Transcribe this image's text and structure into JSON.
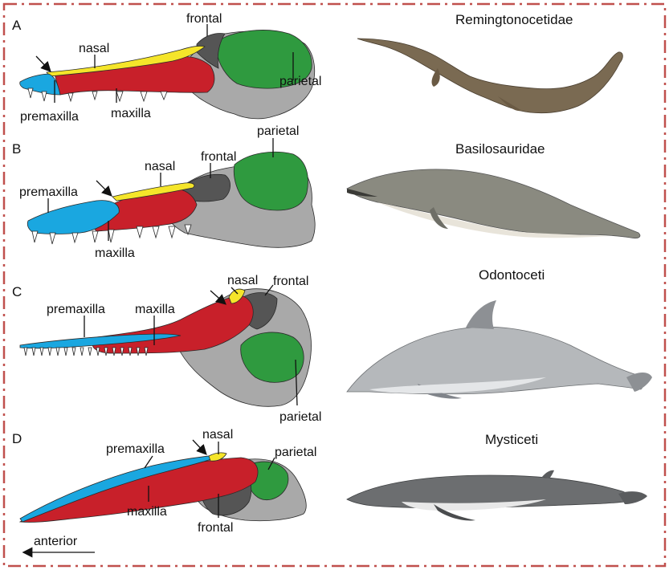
{
  "colors": {
    "premaxilla": "#1aa7e0",
    "maxilla": "#c8202a",
    "nasal": "#f5e52a",
    "frontal": "#555555",
    "parietal": "#2f9a3f",
    "skull_grey": "#a9a9a9",
    "frame": "#c0504d"
  },
  "panels": [
    {
      "letter": "A",
      "taxon": "Remingtonocetidae",
      "labels": {
        "frontal": "frontal",
        "nasal": "nasal",
        "parietal": "parietal",
        "premaxilla": "premaxilla",
        "maxilla": "maxilla"
      }
    },
    {
      "letter": "B",
      "taxon": "Basilosauridae",
      "labels": {
        "parietal": "parietal",
        "frontal": "frontal",
        "nasal": "nasal",
        "premaxilla": "premaxilla",
        "maxilla": "maxilla"
      }
    },
    {
      "letter": "C",
      "taxon": "Odontoceti",
      "labels": {
        "nasal": "nasal",
        "frontal": "frontal",
        "premaxilla": "premaxilla",
        "maxilla": "maxilla",
        "parietal": "parietal"
      }
    },
    {
      "letter": "D",
      "taxon": "Mysticeti",
      "labels": {
        "nasal": "nasal",
        "parietal": "parietal",
        "premaxilla": "premaxilla",
        "maxilla": "maxilla",
        "frontal": "frontal"
      }
    }
  ],
  "direction": {
    "label": "anterior"
  }
}
